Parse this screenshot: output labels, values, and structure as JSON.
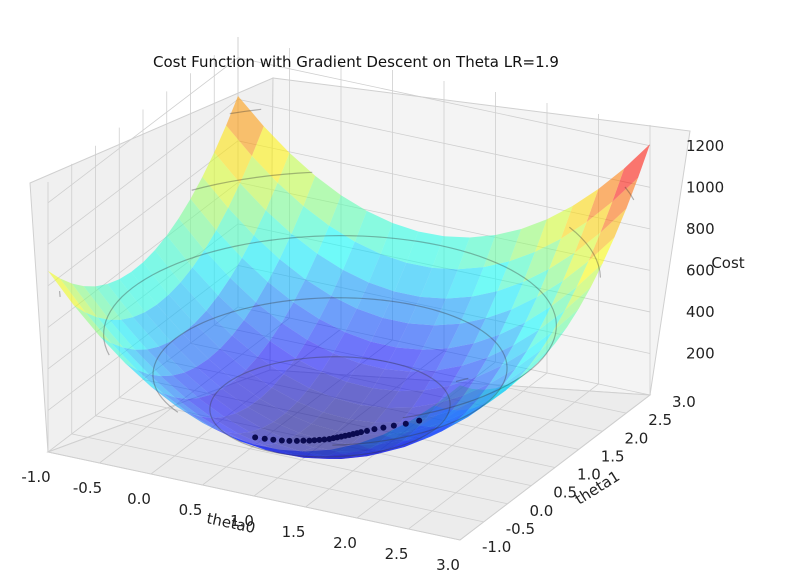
{
  "chart_data": {
    "type": "surface3d",
    "title": "Cost Function with Gradient Descent on Theta LR=1.9",
    "xlabel": "theta0",
    "ylabel": "theta1",
    "zlabel": "Cost",
    "xlim": [
      -1.0,
      3.0
    ],
    "ylim": [
      -1.0,
      3.0
    ],
    "zlim": [
      0,
      1300
    ],
    "x_ticks": [
      "-1.0",
      "-0.5",
      "0.0",
      "0.5",
      "1.0",
      "1.5",
      "2.0",
      "2.5",
      "3.0"
    ],
    "y_ticks": [
      "-1.0",
      "-0.5",
      "0.0",
      "0.5",
      "1.0",
      "1.5",
      "2.0",
      "2.5",
      "3.0"
    ],
    "z_ticks": [
      "200",
      "400",
      "600",
      "800",
      "1000",
      "1200"
    ],
    "colormap": "jet",
    "grid": true,
    "descent_path": {
      "theta0": [
        0.55,
        0.62,
        0.68,
        0.74,
        0.79,
        0.84,
        0.88,
        0.92,
        0.95,
        0.98,
        1.01,
        1.04,
        1.06,
        1.08,
        1.1,
        1.12,
        1.14,
        1.16,
        1.18,
        1.2,
        1.23,
        1.27,
        1.32,
        1.38,
        1.45,
        1.52
      ],
      "theta1": [
        0.0,
        0.05,
        0.1,
        0.15,
        0.2,
        0.25,
        0.3,
        0.34,
        0.38,
        0.42,
        0.46,
        0.5,
        0.54,
        0.58,
        0.62,
        0.66,
        0.7,
        0.74,
        0.78,
        0.82,
        0.88,
        0.95,
        1.03,
        1.12,
        1.22,
        1.35
      ],
      "cost": [
        60,
        52,
        45,
        39,
        34,
        30,
        27,
        24,
        22,
        20,
        18,
        17,
        16,
        15,
        14,
        13,
        12,
        12,
        11,
        11,
        10,
        10,
        9,
        9,
        8,
        8
      ]
    },
    "colors": {
      "path_marker": "#0a0a50",
      "pane": "#f2f2f2",
      "grid": "#cfcfcf"
    }
  }
}
